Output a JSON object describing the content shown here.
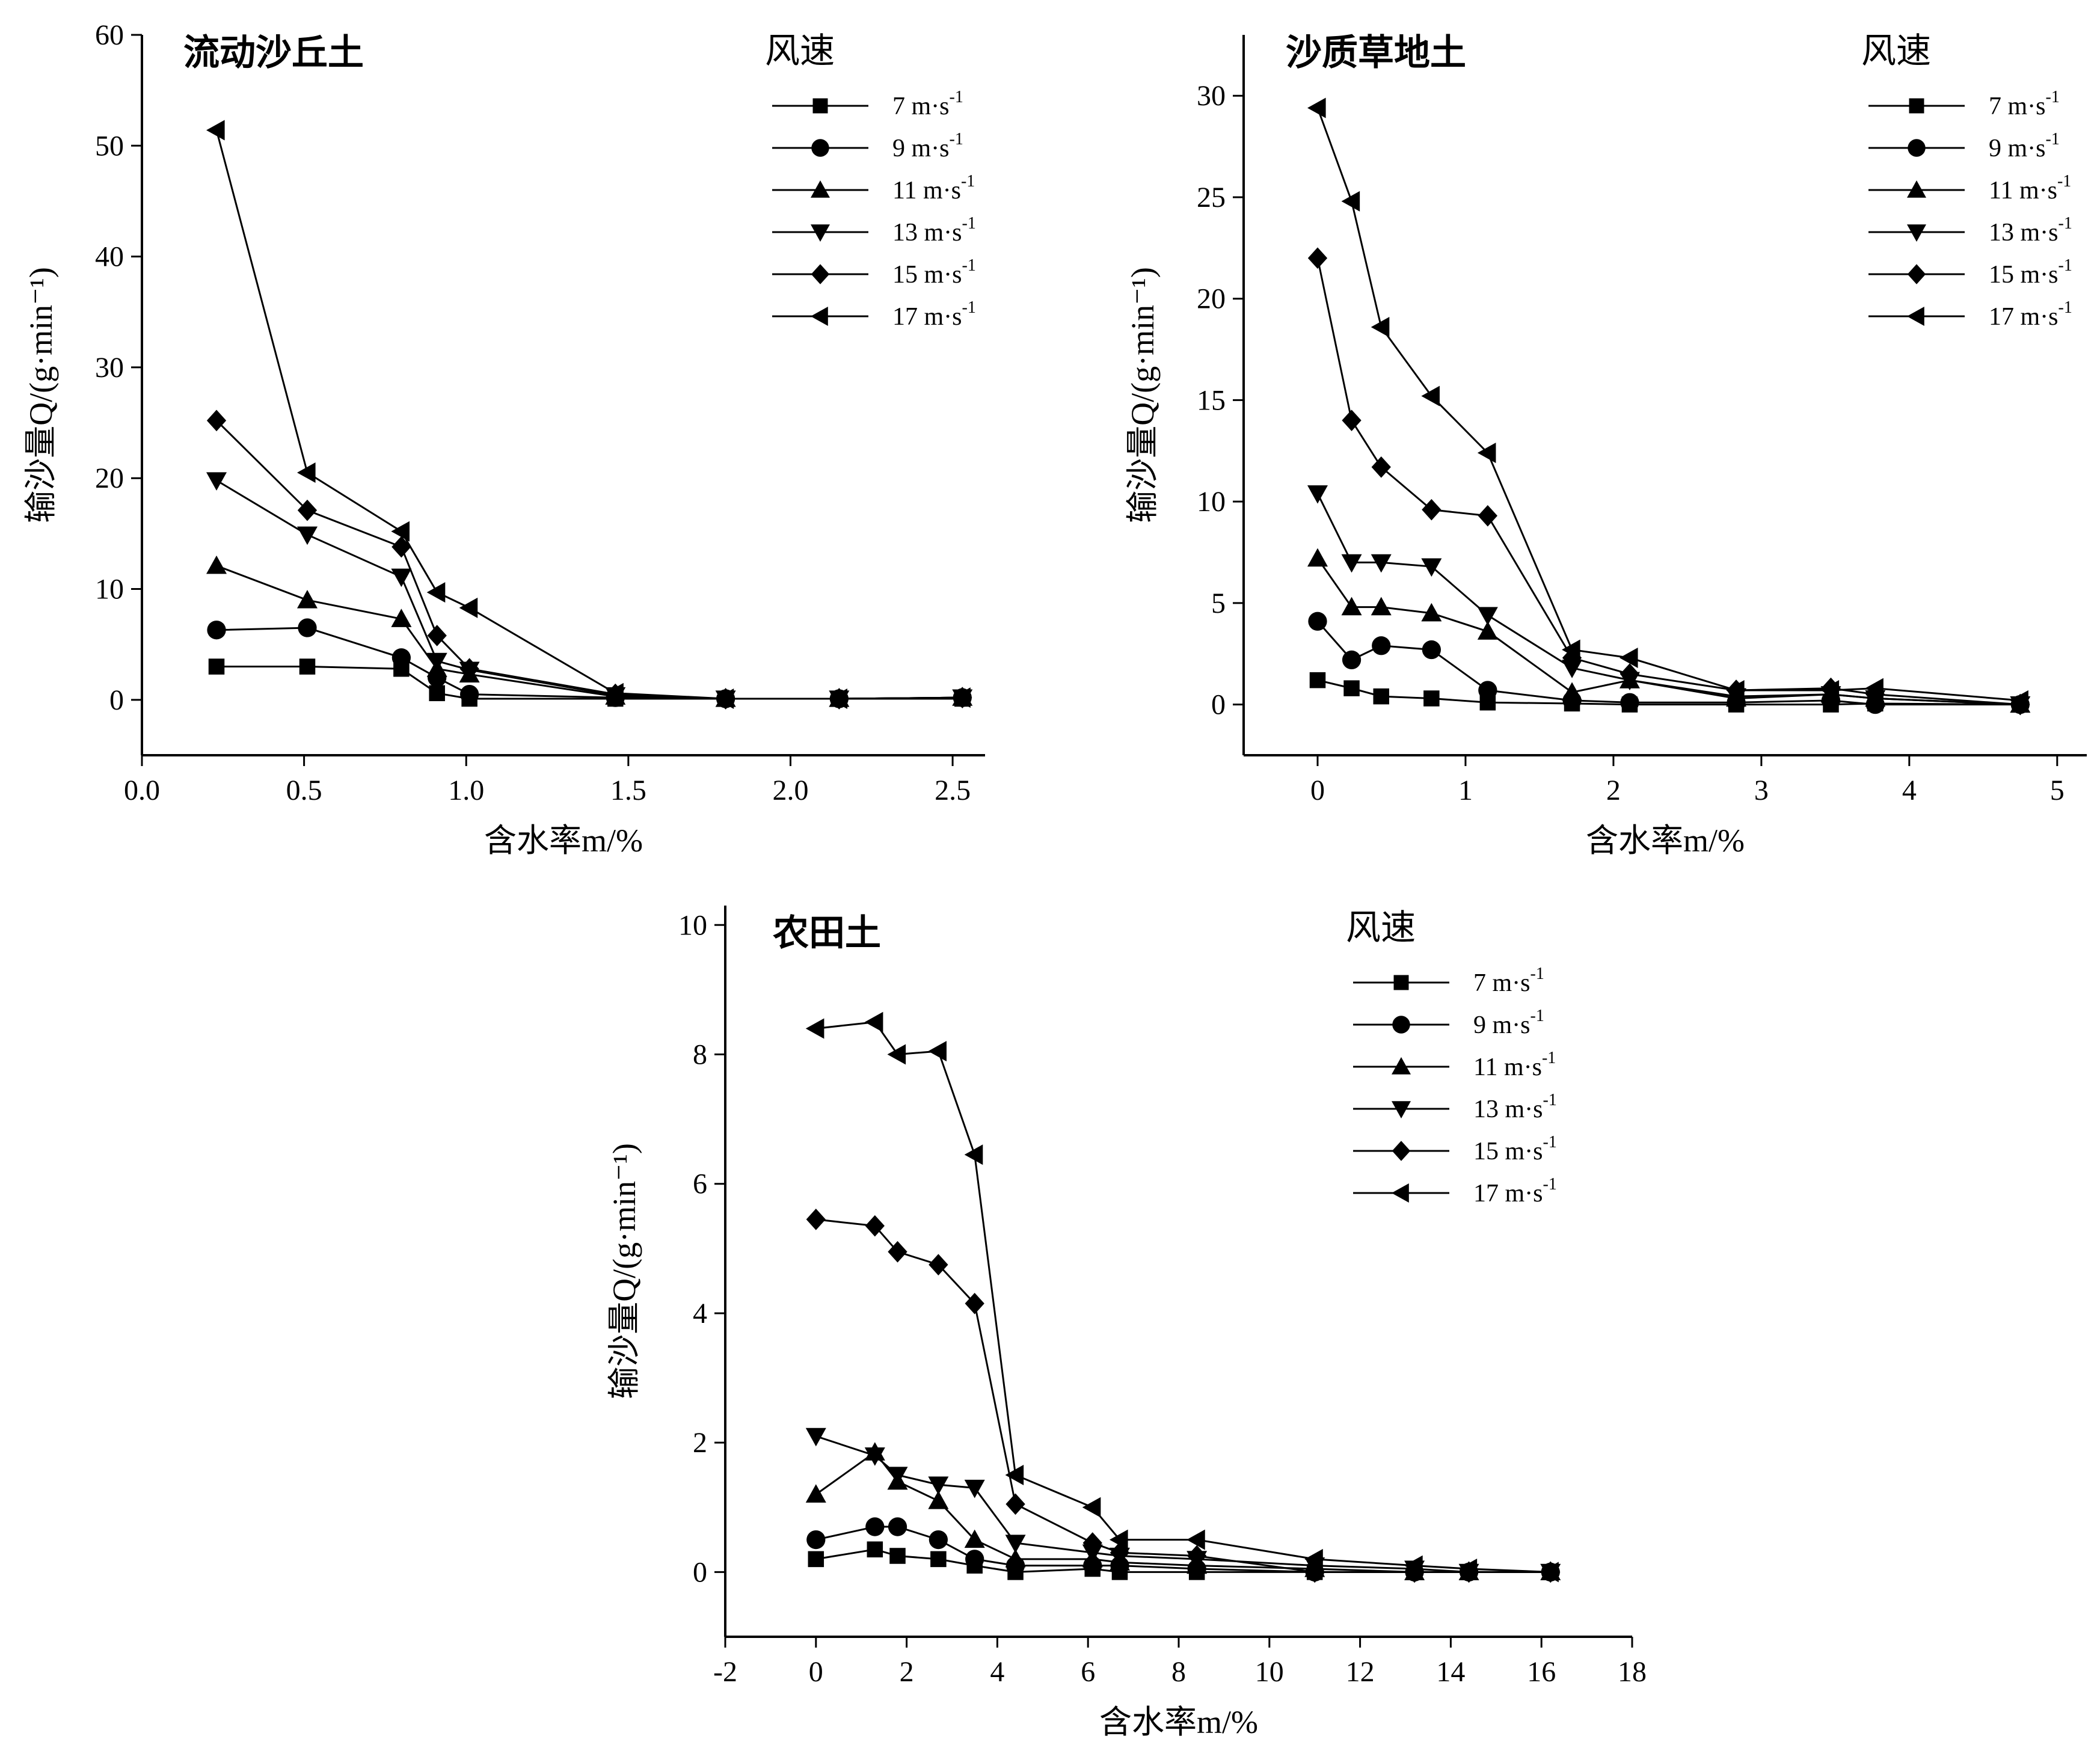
{
  "figure": {
    "caption_hint": "Sand transport rate vs. soil moisture for three soil types"
  },
  "chart_data": [
    {
      "type": "line",
      "title": "流动沙丘土",
      "xlabel": "含水率m/%",
      "ylabel": "输沙量Q/(g·min⁻¹)",
      "xlim": [
        0.0,
        2.6
      ],
      "ylim": [
        -5,
        60
      ],
      "xticks": [
        0.0,
        0.5,
        1.0,
        1.5,
        2.0,
        2.5
      ],
      "xtick_labels": [
        "0.0",
        "0.5",
        "1.0",
        "1.5",
        "2.0",
        "2.5"
      ],
      "yticks": [
        0,
        10,
        20,
        30,
        40,
        50,
        60
      ],
      "ytick_labels": [
        "0",
        "10",
        "20",
        "30",
        "40",
        "50",
        "60"
      ],
      "legend_title": "风速",
      "legend_position": "top-right",
      "series": [
        {
          "name": "7 m·s",
          "sup": "-1",
          "marker": "square",
          "x": [
            0.23,
            0.51,
            0.8,
            0.91,
            1.01,
            1.46,
            1.8,
            2.15,
            2.53
          ],
          "y": [
            3.0,
            3.0,
            2.8,
            0.6,
            0.1,
            0.1,
            0.1,
            0.1,
            0.1
          ]
        },
        {
          "name": "9 m·s",
          "sup": "-1",
          "marker": "circle",
          "x": [
            0.23,
            0.51,
            0.8,
            0.91,
            1.01,
            1.46,
            1.8,
            2.15,
            2.53
          ],
          "y": [
            6.3,
            6.5,
            3.8,
            2.0,
            0.5,
            0.2,
            0.1,
            0.1,
            0.2
          ]
        },
        {
          "name": "11 m·s",
          "sup": "-1",
          "marker": "triangle-up",
          "x": [
            0.23,
            0.51,
            0.8,
            0.91,
            1.01,
            1.46,
            1.8,
            2.15,
            2.53
          ],
          "y": [
            12.1,
            9.0,
            7.3,
            2.8,
            2.3,
            0.3,
            0.1,
            0.1,
            0.2
          ]
        },
        {
          "name": "13 m·s",
          "sup": "-1",
          "marker": "triangle-down",
          "x": [
            0.23,
            0.51,
            0.8,
            0.91,
            1.01,
            1.46,
            1.8,
            2.15,
            2.53
          ],
          "y": [
            19.8,
            14.9,
            11.1,
            3.5,
            2.7,
            0.4,
            0.1,
            0.1,
            0.2
          ]
        },
        {
          "name": "15 m·s",
          "sup": "-1",
          "marker": "diamond",
          "x": [
            0.23,
            0.51,
            0.8,
            0.91,
            1.01,
            1.46,
            1.8,
            2.15,
            2.53
          ],
          "y": [
            25.2,
            17.1,
            13.8,
            5.8,
            2.8,
            0.5,
            0.1,
            0.1,
            0.2
          ]
        },
        {
          "name": "17 m·s",
          "sup": "-1",
          "marker": "triangle-left",
          "x": [
            0.23,
            0.51,
            0.8,
            0.91,
            1.01,
            1.46,
            1.8,
            2.15,
            2.53
          ],
          "y": [
            51.4,
            20.5,
            15.2,
            9.7,
            8.3,
            0.6,
            0.1,
            0.1,
            0.2
          ]
        }
      ]
    },
    {
      "type": "line",
      "title": "沙质草地土",
      "xlabel": "含水率m/%",
      "ylabel": "输沙量Q/(g·min⁻¹)",
      "xlim": [
        -0.5,
        5.2
      ],
      "ylim": [
        -2.5,
        33
      ],
      "xticks": [
        0,
        1,
        2,
        3,
        4,
        5
      ],
      "xtick_labels": [
        "0",
        "1",
        "2",
        "3",
        "4",
        "5"
      ],
      "yticks": [
        0,
        5,
        10,
        15,
        20,
        25,
        30
      ],
      "ytick_labels": [
        "0",
        "5",
        "10",
        "15",
        "20",
        "25",
        "30"
      ],
      "legend_title": "风速",
      "legend_position": "top-right",
      "series": [
        {
          "name": "7 m·s",
          "sup": "-1",
          "marker": "square",
          "x": [
            0.0,
            0.23,
            0.43,
            0.77,
            1.15,
            1.72,
            2.11,
            2.83,
            3.47,
            3.77,
            4.75
          ],
          "y": [
            1.2,
            0.8,
            0.4,
            0.3,
            0.1,
            0.05,
            0.0,
            0.0,
            0.0,
            0.05,
            0.0
          ]
        },
        {
          "name": "9 m·s",
          "sup": "-1",
          "marker": "circle",
          "x": [
            0.0,
            0.23,
            0.43,
            0.77,
            1.15,
            1.72,
            2.11,
            2.83,
            3.47,
            3.77,
            4.75
          ],
          "y": [
            4.1,
            2.2,
            2.9,
            2.7,
            0.7,
            0.2,
            0.1,
            0.1,
            0.2,
            0.0,
            0.0
          ]
        },
        {
          "name": "11 m·s",
          "sup": "-1",
          "marker": "triangle-up",
          "x": [
            0.0,
            0.23,
            0.43,
            0.77,
            1.15,
            1.72,
            2.11,
            2.83,
            3.47,
            3.77,
            4.75
          ],
          "y": [
            7.2,
            4.8,
            4.8,
            4.5,
            3.6,
            0.6,
            1.2,
            0.3,
            0.5,
            0.3,
            0.0
          ]
        },
        {
          "name": "13 m·s",
          "sup": "-1",
          "marker": "triangle-down",
          "x": [
            0.0,
            0.23,
            0.43,
            0.77,
            1.15,
            1.72,
            2.11,
            2.83,
            3.47,
            3.77,
            4.75
          ],
          "y": [
            10.4,
            7.0,
            7.0,
            6.8,
            4.4,
            1.8,
            1.2,
            0.4,
            0.5,
            0.3,
            0.0
          ]
        },
        {
          "name": "15 m·s",
          "sup": "-1",
          "marker": "diamond",
          "x": [
            0.0,
            0.23,
            0.43,
            0.77,
            1.15,
            1.72,
            2.11,
            2.83,
            3.47,
            3.77,
            4.75
          ],
          "y": [
            22.0,
            14.0,
            11.7,
            9.6,
            9.3,
            2.3,
            1.5,
            0.7,
            0.8,
            0.5,
            0.0
          ]
        },
        {
          "name": "17 m·s",
          "sup": "-1",
          "marker": "triangle-left",
          "x": [
            0.0,
            0.23,
            0.43,
            0.77,
            1.15,
            1.72,
            2.11,
            2.83,
            3.47,
            3.77,
            4.75
          ],
          "y": [
            29.4,
            24.8,
            18.6,
            15.2,
            12.4,
            2.7,
            2.3,
            0.7,
            0.7,
            0.8,
            0.2
          ]
        }
      ]
    },
    {
      "type": "line",
      "title": "农田土",
      "xlabel": "含水率m/%",
      "ylabel": "输沙量Q/(g·min⁻¹)",
      "xlim": [
        -2,
        18
      ],
      "ylim": [
        -1,
        10.3
      ],
      "xticks": [
        -2,
        0,
        2,
        4,
        6,
        8,
        10,
        12,
        14,
        16,
        18
      ],
      "xtick_labels": [
        "-2",
        "0",
        "2",
        "4",
        "6",
        "8",
        "10",
        "12",
        "14",
        "16",
        "18"
      ],
      "yticks": [
        0,
        2,
        4,
        6,
        8,
        10
      ],
      "ytick_labels": [
        "0",
        "2",
        "4",
        "6",
        "8",
        "10"
      ],
      "legend_title": "风速",
      "legend_position": "top-right",
      "series": [
        {
          "name": "7 m·s",
          "sup": "-1",
          "marker": "square",
          "x": [
            0.0,
            1.3,
            1.8,
            2.7,
            3.5,
            4.4,
            6.1,
            6.7,
            8.4,
            11.0,
            13.2,
            14.4,
            16.2
          ],
          "y": [
            0.2,
            0.35,
            0.25,
            0.2,
            0.1,
            0.0,
            0.05,
            0.0,
            0.0,
            0.0,
            0.0,
            0.0,
            0.0
          ]
        },
        {
          "name": "9 m·s",
          "sup": "-1",
          "marker": "circle",
          "x": [
            0.0,
            1.3,
            1.8,
            2.7,
            3.5,
            4.4,
            6.1,
            6.7,
            8.4,
            11.0,
            13.2,
            14.4,
            16.2
          ],
          "y": [
            0.5,
            0.7,
            0.7,
            0.5,
            0.2,
            0.1,
            0.1,
            0.1,
            0.05,
            0.0,
            0.0,
            0.0,
            0.0
          ]
        },
        {
          "name": "11 m·s",
          "sup": "-1",
          "marker": "triangle-up",
          "x": [
            0.0,
            1.3,
            1.8,
            2.7,
            3.5,
            4.4,
            6.1,
            6.7,
            8.4,
            11.0,
            13.2,
            14.4,
            16.2
          ],
          "y": [
            1.2,
            1.85,
            1.4,
            1.1,
            0.5,
            0.2,
            0.2,
            0.15,
            0.1,
            0.05,
            0.0,
            0.0,
            0.0
          ]
        },
        {
          "name": "13 m·s",
          "sup": "-1",
          "marker": "triangle-down",
          "x": [
            0.0,
            1.3,
            1.8,
            2.7,
            3.5,
            4.4,
            6.1,
            6.7,
            8.4,
            11.0,
            13.2,
            14.4,
            16.2
          ],
          "y": [
            2.1,
            1.8,
            1.5,
            1.35,
            1.3,
            0.45,
            0.3,
            0.25,
            0.2,
            0.1,
            0.05,
            0.0,
            0.0
          ]
        },
        {
          "name": "15 m·s",
          "sup": "-1",
          "marker": "diamond",
          "x": [
            0.0,
            1.3,
            1.8,
            2.7,
            3.5,
            4.4,
            6.1,
            6.7,
            8.4,
            11.0,
            13.2,
            14.4,
            16.2
          ],
          "y": [
            5.45,
            5.35,
            4.95,
            4.75,
            4.15,
            1.05,
            0.45,
            0.3,
            0.25,
            0.0,
            0.0,
            0.0,
            0.0
          ]
        },
        {
          "name": "17 m·s",
          "sup": "-1",
          "marker": "triangle-left",
          "x": [
            0.0,
            1.3,
            1.8,
            2.7,
            3.5,
            4.4,
            6.1,
            6.7,
            8.4,
            11.0,
            13.2,
            14.4,
            16.2
          ],
          "y": [
            8.4,
            8.5,
            8.0,
            8.05,
            6.45,
            1.5,
            1.0,
            0.5,
            0.5,
            0.2,
            0.1,
            0.05,
            0.0
          ]
        }
      ]
    }
  ]
}
